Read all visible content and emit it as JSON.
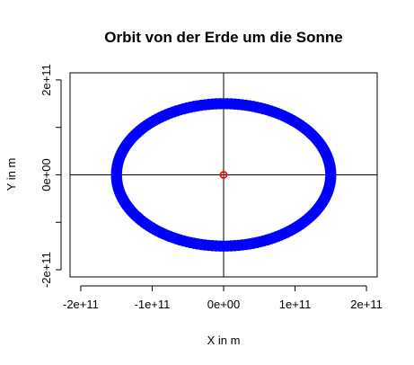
{
  "chart_data": {
    "type": "scatter",
    "title": "Orbit von der Erde um die Sonne",
    "xlabel": "X in m",
    "ylabel": "Y in m",
    "xlim": [
      -215000000000,
      215000000000
    ],
    "ylim": [
      -215000000000,
      215000000000
    ],
    "x_ticks": [
      -200000000000,
      -100000000000,
      0,
      100000000000,
      200000000000
    ],
    "x_tick_labels": [
      "-2e+11",
      "-1e+11",
      "0e+00",
      "1e+11",
      "2e+11"
    ],
    "y_ticks": [
      -200000000000,
      0,
      200000000000
    ],
    "y_tick_labels": [
      "-2e+11",
      "0e+00",
      "2e+11"
    ],
    "y_minor_ticks": [
      -100000000000,
      100000000000
    ],
    "grid": false,
    "reference_lines": {
      "x": 0,
      "y": 0,
      "color": "#000000"
    },
    "series": [
      {
        "kind": "orbit",
        "color": "#0000ff",
        "center": [
          0,
          0
        ],
        "semi_major_axis": 150000000000,
        "semi_minor_axis": 150000000000,
        "points": 180
      },
      {
        "kind": "sun",
        "color": "#ff0000",
        "x": [
          0
        ],
        "y": [
          0
        ]
      }
    ]
  }
}
